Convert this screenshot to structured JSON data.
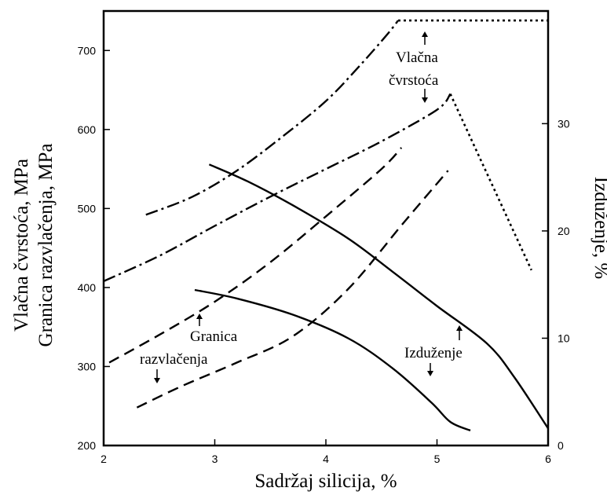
{
  "chart_data": {
    "type": "line",
    "xlabel": "Sadržaj silicija, %",
    "ylabel_left": [
      "Vlačna čvrstoća, MPa",
      "Granica razvlačenja, MPa"
    ],
    "ylabel_right": "Izduženje, %",
    "xlim": [
      2,
      6
    ],
    "ylim_left": [
      200,
      750
    ],
    "ylim_right": [
      0,
      40.5
    ],
    "x_ticks": [
      2,
      3,
      4,
      5,
      6
    ],
    "y_left_ticks": [
      200,
      300,
      400,
      500,
      600,
      700
    ],
    "y_right_ticks": [
      0,
      10,
      20,
      30
    ],
    "grid": false,
    "annotations": [
      {
        "lines": [
          "Vlačna",
          "čvrstoća"
        ]
      },
      {
        "lines": [
          "Granica",
          "razvlačenja"
        ]
      },
      {
        "lines": [
          "Izduženje"
        ]
      }
    ],
    "series": [
      {
        "style": "dash-dot",
        "axis": "left",
        "points": [
          [
            2.38,
            492
          ],
          [
            2.8,
            515
          ],
          [
            3.2,
            548
          ],
          [
            3.6,
            590
          ],
          [
            4.0,
            636
          ],
          [
            4.3,
            680
          ],
          [
            4.55,
            720
          ],
          [
            4.65,
            738
          ]
        ]
      },
      {
        "style": "dotted",
        "axis": "left",
        "points": [
          [
            4.65,
            738
          ],
          [
            6.0,
            738
          ]
        ]
      },
      {
        "style": "dash-dot",
        "axis": "left",
        "points": [
          [
            2.0,
            408
          ],
          [
            2.5,
            440
          ],
          [
            3.0,
            478
          ],
          [
            3.5,
            515
          ],
          [
            4.0,
            550
          ],
          [
            4.5,
            585
          ],
          [
            5.0,
            625
          ],
          [
            5.12,
            645
          ]
        ]
      },
      {
        "style": "dotted",
        "axis": "left",
        "points": [
          [
            5.12,
            645
          ],
          [
            5.85,
            422
          ]
        ]
      },
      {
        "style": "dashed",
        "axis": "left",
        "points": [
          [
            2.05,
            305
          ],
          [
            2.5,
            340
          ],
          [
            3.0,
            382
          ],
          [
            3.5,
            432
          ],
          [
            4.0,
            490
          ],
          [
            4.5,
            550
          ],
          [
            4.68,
            577
          ]
        ]
      },
      {
        "style": "dashed",
        "axis": "left",
        "points": [
          [
            2.3,
            248
          ],
          [
            2.7,
            275
          ],
          [
            3.2,
            305
          ],
          [
            3.7,
            338
          ],
          [
            4.2,
            398
          ],
          [
            4.7,
            482
          ],
          [
            5.1,
            548
          ]
        ]
      },
      {
        "style": "solid",
        "axis": "right",
        "points": [
          [
            2.95,
            26.2
          ],
          [
            3.3,
            24.6
          ],
          [
            3.7,
            22.4
          ],
          [
            4.2,
            19.3
          ],
          [
            4.6,
            16.2
          ],
          [
            5.0,
            13.0
          ],
          [
            5.45,
            9.5
          ],
          [
            5.7,
            6.3
          ],
          [
            6.0,
            1.6
          ]
        ]
      },
      {
        "style": "solid",
        "axis": "right",
        "points": [
          [
            2.82,
            14.5
          ],
          [
            3.2,
            13.7
          ],
          [
            3.7,
            12.2
          ],
          [
            4.2,
            10.0
          ],
          [
            4.6,
            7.2
          ],
          [
            4.95,
            4.0
          ],
          [
            5.12,
            2.2
          ],
          [
            5.3,
            1.4
          ]
        ]
      }
    ]
  }
}
